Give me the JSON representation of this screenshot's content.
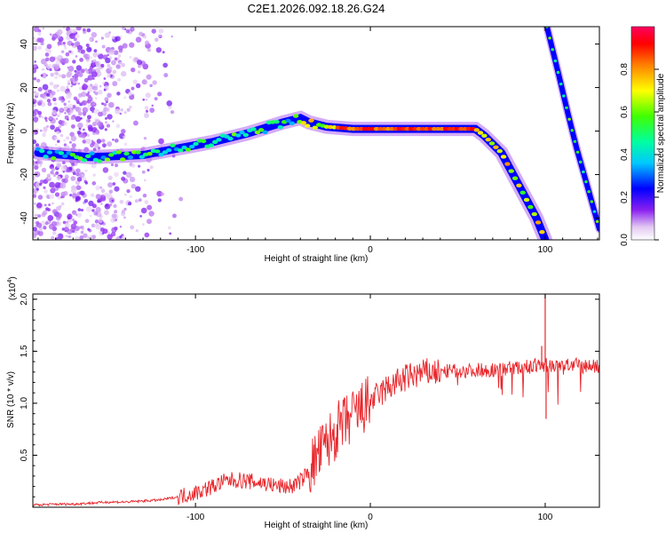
{
  "title": "C2E1.2026.092.18.26.G24",
  "chart_data": [
    {
      "type": "heatmap",
      "xlabel": "Height of straight line (km)",
      "ylabel": "Frequency (Hz)",
      "xlim": [
        -193,
        131
      ],
      "ylim": [
        -50,
        48
      ],
      "xticks": [
        -100,
        0,
        100
      ],
      "xtick_labels": [
        "-100",
        "0",
        "100"
      ],
      "yticks": [
        -40,
        -20,
        0,
        20,
        40
      ],
      "ytick_labels": [
        "-40",
        "-20",
        "0",
        "20",
        "40"
      ],
      "colorbar": {
        "label": "Normalized spectral amplitude",
        "range": [
          0,
          1
        ],
        "ticks": [
          0.0,
          0.2,
          0.4,
          0.6,
          0.8
        ],
        "tick_labels": [
          "0.0",
          "0.2",
          "0.4",
          "0.6",
          "0.8"
        ]
      },
      "ridges": [
        {
          "name": "main trace",
          "points": [
            [
              -190,
              -10
            ],
            [
              -160,
              -12
            ],
            [
              -130,
              -11
            ],
            [
              -110,
              -8
            ],
            [
              -90,
              -5
            ],
            [
              -70,
              -1
            ],
            [
              -50,
              4
            ],
            [
              -40,
              6
            ],
            [
              -35,
              4
            ],
            [
              -25,
              2
            ],
            [
              -10,
              1
            ],
            [
              0,
              1
            ],
            [
              20,
              1
            ],
            [
              40,
              1
            ],
            [
              60,
              1
            ],
            [
              65,
              -2
            ],
            [
              75,
              -10
            ],
            [
              85,
              -25
            ],
            [
              95,
              -40
            ],
            [
              100,
              -50
            ]
          ]
        },
        {
          "name": "descending trace",
          "points": [
            [
              101,
              48
            ],
            [
              108,
              25
            ],
            [
              113,
              8
            ],
            [
              118,
              -8
            ],
            [
              124,
              -25
            ],
            [
              131,
              -45
            ]
          ]
        }
      ]
    },
    {
      "type": "line",
      "xlabel": "Height of straight line (km)",
      "ylabel": "SNR (10 * v/v)",
      "multiplier_label": "(x10",
      "multiplier_exp": "4",
      "xlim": [
        -193,
        131
      ],
      "ylim": [
        0,
        2.05
      ],
      "xticks": [
        -100,
        0,
        100
      ],
      "xtick_labels": [
        "-100",
        "0",
        "100"
      ],
      "yticks": [
        0.5,
        1.0,
        1.5,
        2.0
      ],
      "ytick_labels": [
        "0.5",
        "1.0",
        "1.5",
        "2.0"
      ],
      "series": [
        {
          "name": "SNR",
          "color": "#e8262b",
          "x": [
            -193,
            -180,
            -170,
            -160,
            -150,
            -140,
            -130,
            -120,
            -110,
            -105,
            -100,
            -95,
            -90,
            -85,
            -80,
            -75,
            -70,
            -65,
            -60,
            -55,
            -50,
            -45,
            -40,
            -35,
            -30,
            -25,
            -20,
            -15,
            -10,
            -5,
            0,
            5,
            10,
            15,
            20,
            25,
            30,
            35,
            40,
            45,
            50,
            55,
            60,
            65,
            70,
            75,
            80,
            85,
            90,
            95,
            100,
            105,
            110,
            115,
            120,
            125,
            131
          ],
          "values": [
            0.02,
            0.03,
            0.03,
            0.04,
            0.05,
            0.05,
            0.06,
            0.07,
            0.1,
            0.12,
            0.14,
            0.17,
            0.2,
            0.24,
            0.26,
            0.26,
            0.25,
            0.24,
            0.23,
            0.21,
            0.2,
            0.2,
            0.25,
            0.35,
            0.5,
            0.6,
            0.72,
            0.8,
            0.87,
            0.94,
            1.02,
            1.08,
            1.15,
            1.2,
            1.24,
            1.27,
            1.29,
            1.3,
            1.3,
            1.31,
            1.31,
            1.31,
            1.32,
            1.32,
            1.32,
            1.33,
            1.34,
            1.34,
            1.35,
            1.36,
            1.37,
            1.36,
            1.36,
            1.37,
            1.36,
            1.36,
            1.35
          ],
          "spikes": [
            [
              100,
              2.05
            ],
            [
              100.5,
              0.85
            ],
            [
              98,
              1.55
            ]
          ]
        }
      ]
    }
  ]
}
